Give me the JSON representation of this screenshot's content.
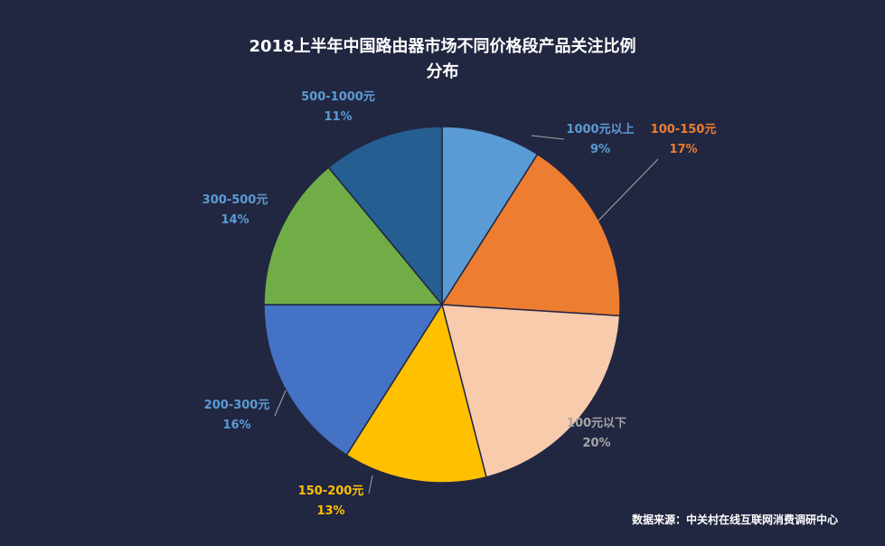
{
  "chart_data": {
    "type": "pie",
    "title": "2018上半年中国路由器市场不同价格段产品关注比例",
    "title_line2": "分布",
    "slices": [
      {
        "label": "1000元以上",
        "value": 9,
        "pct_text": "9%",
        "color": "#5b9bd5",
        "label_color": "#5b9bd5"
      },
      {
        "label": "100-150元",
        "value": 17,
        "pct_text": "17%",
        "color": "#ed7d31",
        "label_color": "#ed7d31"
      },
      {
        "label": "100元以下",
        "value": 20,
        "pct_text": "20%",
        "color": "#f8cbad",
        "label_color": "#a5a5a5"
      },
      {
        "label": "150-200元",
        "value": 13,
        "pct_text": "13%",
        "color": "#ffc000",
        "label_color": "#ffc000"
      },
      {
        "label": "200-300元",
        "value": 16,
        "pct_text": "16%",
        "color": "#4472c4",
        "label_color": "#5b9bd5"
      },
      {
        "label": "300-500元",
        "value": 14,
        "pct_text": "14%",
        "color": "#70ad47",
        "label_color": "#5b9bd5"
      },
      {
        "label": "500-1000元",
        "value": 11,
        "pct_text": "11%",
        "color": "#255e91",
        "label_color": "#5b9bd5"
      }
    ]
  },
  "source": "数据来源：中关村在线互联网消费调研中心",
  "colors": {
    "background": "#222741",
    "slice_border": "#222741"
  }
}
